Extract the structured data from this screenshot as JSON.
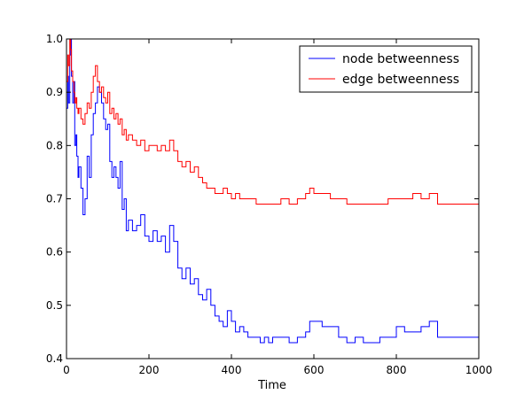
{
  "chart_data": {
    "type": "line",
    "title": "",
    "xlabel": "Time",
    "ylabel": "",
    "xlim": [
      0,
      1000
    ],
    "ylim": [
      0.4,
      1.0
    ],
    "xticks": [
      0,
      200,
      400,
      600,
      800,
      1000
    ],
    "yticks": [
      0.4,
      0.5,
      0.6,
      0.7,
      0.8,
      0.9,
      1.0
    ],
    "xtick_labels": [
      "0",
      "200",
      "400",
      "600",
      "800",
      "1000"
    ],
    "ytick_labels": [
      "0.4",
      "0.5",
      "0.6",
      "0.7",
      "0.8",
      "0.9",
      "1.0"
    ],
    "grid": false,
    "legend_position": "top-right",
    "line_style": "steps",
    "series": [
      {
        "name": "node betweenness",
        "color": "#0000ff",
        "x": [
          0,
          3,
          5,
          8,
          10,
          12,
          15,
          18,
          20,
          23,
          25,
          28,
          30,
          35,
          40,
          45,
          50,
          55,
          60,
          65,
          70,
          75,
          80,
          85,
          90,
          95,
          100,
          105,
          110,
          115,
          120,
          125,
          130,
          135,
          140,
          145,
          150,
          160,
          170,
          180,
          190,
          200,
          210,
          220,
          230,
          240,
          250,
          260,
          270,
          280,
          290,
          300,
          310,
          320,
          330,
          340,
          350,
          360,
          370,
          380,
          390,
          400,
          410,
          420,
          430,
          440,
          450,
          460,
          470,
          480,
          490,
          500,
          520,
          540,
          560,
          580,
          590,
          600,
          620,
          640,
          660,
          680,
          700,
          720,
          740,
          760,
          780,
          800,
          820,
          840,
          860,
          880,
          900,
          950,
          1000
        ],
        "values": [
          0.87,
          0.93,
          0.88,
          0.97,
          1.0,
          0.93,
          0.88,
          0.92,
          0.8,
          0.82,
          0.78,
          0.74,
          0.76,
          0.72,
          0.67,
          0.7,
          0.78,
          0.74,
          0.82,
          0.86,
          0.88,
          0.91,
          0.9,
          0.88,
          0.85,
          0.83,
          0.84,
          0.77,
          0.74,
          0.76,
          0.74,
          0.72,
          0.77,
          0.68,
          0.7,
          0.64,
          0.66,
          0.64,
          0.65,
          0.67,
          0.63,
          0.62,
          0.64,
          0.62,
          0.63,
          0.6,
          0.65,
          0.62,
          0.57,
          0.55,
          0.57,
          0.54,
          0.55,
          0.52,
          0.51,
          0.53,
          0.5,
          0.48,
          0.47,
          0.46,
          0.49,
          0.47,
          0.45,
          0.46,
          0.45,
          0.44,
          0.44,
          0.44,
          0.43,
          0.44,
          0.43,
          0.44,
          0.44,
          0.43,
          0.44,
          0.45,
          0.47,
          0.47,
          0.46,
          0.46,
          0.44,
          0.43,
          0.44,
          0.43,
          0.43,
          0.44,
          0.44,
          0.46,
          0.45,
          0.45,
          0.46,
          0.47,
          0.44,
          0.44,
          0.44
        ]
      },
      {
        "name": "edge betweenness",
        "color": "#ff0000",
        "x": [
          0,
          3,
          5,
          8,
          10,
          12,
          15,
          18,
          20,
          23,
          25,
          28,
          30,
          35,
          40,
          45,
          50,
          55,
          60,
          65,
          70,
          75,
          80,
          85,
          90,
          95,
          100,
          105,
          110,
          115,
          120,
          125,
          130,
          135,
          140,
          145,
          150,
          160,
          170,
          180,
          190,
          200,
          210,
          220,
          230,
          240,
          250,
          260,
          270,
          280,
          290,
          300,
          310,
          320,
          330,
          340,
          350,
          360,
          370,
          380,
          390,
          400,
          410,
          420,
          430,
          440,
          450,
          460,
          470,
          480,
          490,
          500,
          520,
          540,
          560,
          580,
          590,
          600,
          620,
          640,
          660,
          680,
          700,
          720,
          740,
          760,
          780,
          800,
          820,
          840,
          860,
          880,
          900,
          950,
          1000
        ],
        "values": [
          0.92,
          0.97,
          0.95,
          1.0,
          0.98,
          0.94,
          0.92,
          0.9,
          0.88,
          0.89,
          0.87,
          0.86,
          0.87,
          0.85,
          0.84,
          0.86,
          0.88,
          0.87,
          0.9,
          0.93,
          0.95,
          0.92,
          0.9,
          0.91,
          0.89,
          0.88,
          0.9,
          0.86,
          0.87,
          0.85,
          0.86,
          0.84,
          0.85,
          0.82,
          0.83,
          0.81,
          0.82,
          0.81,
          0.8,
          0.81,
          0.79,
          0.8,
          0.8,
          0.79,
          0.8,
          0.79,
          0.81,
          0.79,
          0.77,
          0.76,
          0.77,
          0.75,
          0.76,
          0.74,
          0.73,
          0.72,
          0.72,
          0.71,
          0.71,
          0.72,
          0.71,
          0.7,
          0.71,
          0.7,
          0.7,
          0.7,
          0.7,
          0.69,
          0.69,
          0.69,
          0.69,
          0.69,
          0.7,
          0.69,
          0.7,
          0.71,
          0.72,
          0.71,
          0.71,
          0.7,
          0.7,
          0.69,
          0.69,
          0.69,
          0.69,
          0.69,
          0.7,
          0.7,
          0.7,
          0.71,
          0.7,
          0.71,
          0.69,
          0.69,
          0.69
        ]
      }
    ]
  }
}
